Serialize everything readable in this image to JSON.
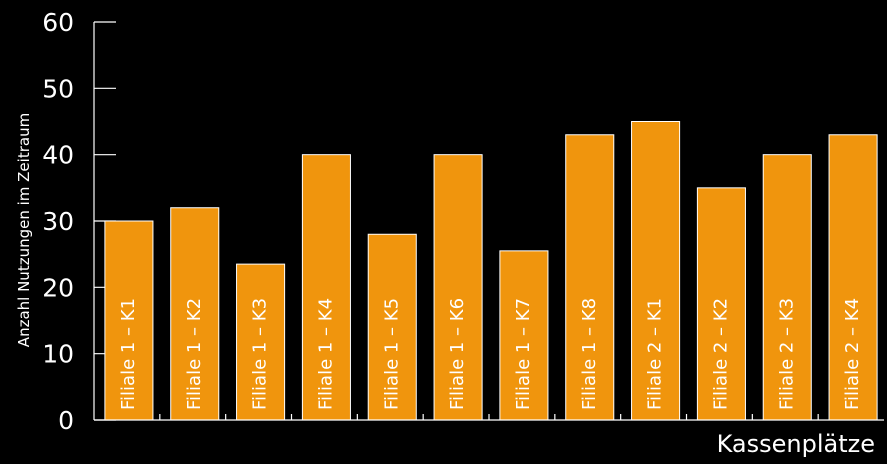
{
  "chart_data": {
    "type": "bar",
    "title": "",
    "xlabel": "Kassenplätze",
    "ylabel": "Anzahl Nutzungen im Zeitraum",
    "ylim": [
      0,
      60
    ],
    "yticks": [
      0,
      10,
      20,
      30,
      40,
      50,
      60
    ],
    "categories": [
      "Filiale 1 – K1",
      "Filiale 1 – K2",
      "Filiale 1 – K3",
      "Filiale 1 – K4",
      "Filiale 1 – K5",
      "Filiale 1 – K6",
      "Filiale 1 – K7",
      "Filiale 1 – K8",
      "Filiale 2 – K1",
      "Filiale 2 – K2",
      "Filiale 2 – K3",
      "Filiale 2 – K4"
    ],
    "values": [
      30,
      32,
      23.5,
      40,
      28,
      40,
      25.5,
      43,
      45,
      35,
      40,
      43
    ],
    "grid": false,
    "legend": "none",
    "colors": {
      "background": "#000000",
      "bar": "#F0950D",
      "bar_edge": "#ffffff",
      "axis": "#ffffff",
      "text": "#ffffff"
    }
  }
}
